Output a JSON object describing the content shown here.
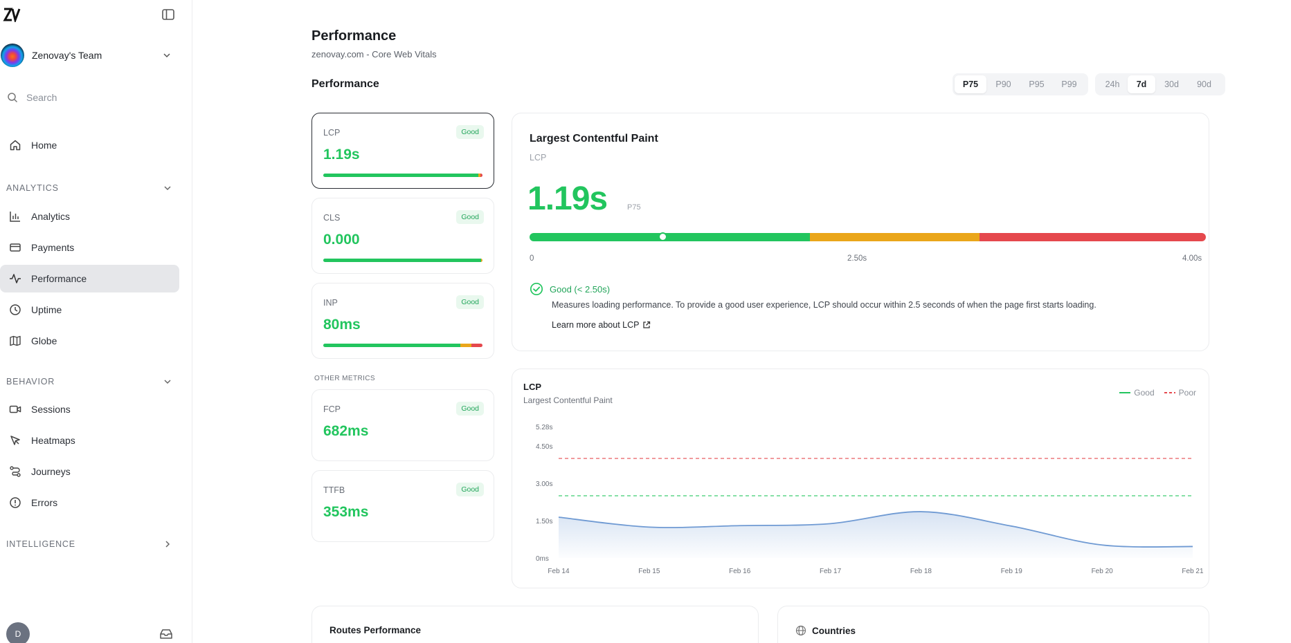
{
  "sidebar": {
    "team_name": "Zenovay's Team",
    "search_placeholder": "Search",
    "home": "Home",
    "analytics_section": "ANALYTICS",
    "analytics_items": [
      "Analytics",
      "Payments",
      "Performance",
      "Uptime",
      "Globe"
    ],
    "behavior_section": "BEHAVIOR",
    "behavior_items": [
      "Sessions",
      "Heatmaps",
      "Journeys",
      "Errors"
    ],
    "intelligence_section": "INTELLIGENCE",
    "user_initial": "D"
  },
  "header": {
    "title": "Performance",
    "subtitle": "zenovay.com - Core Web Vitals",
    "section_title": "Performance"
  },
  "percentile_options": [
    "P75",
    "P90",
    "P95",
    "P99"
  ],
  "percentile_selected": "P75",
  "range_options": [
    "24h",
    "7d",
    "30d",
    "90d"
  ],
  "range_selected": "7d",
  "metrics": [
    {
      "name": "LCP",
      "value": "1.19s",
      "badge": "Good",
      "bar": [
        0.975,
        0.01,
        0.015
      ]
    },
    {
      "name": "CLS",
      "value": "0.000",
      "badge": "Good",
      "bar": [
        0.99,
        0.01,
        0.0
      ]
    },
    {
      "name": "INP",
      "value": "80ms",
      "badge": "Good",
      "bar": [
        0.86,
        0.07,
        0.07
      ]
    }
  ],
  "other_metrics_label": "OTHER METRICS",
  "other_metrics": [
    {
      "name": "FCP",
      "value": "682ms",
      "badge": "Good"
    },
    {
      "name": "TTFB",
      "value": "353ms",
      "badge": "Good"
    }
  ],
  "detail": {
    "title": "Largest Contentful Paint",
    "abbr": "LCP",
    "value": "1.19s",
    "percentile": "P75",
    "scale_min": 0,
    "scale_max": 4.0,
    "scale_good_to": 1.66,
    "scale_ni_to": 2.66,
    "marker_value": 0.79,
    "tick_labels": [
      "0",
      "2.50s",
      "4.00s"
    ],
    "status": "Good (< 2.50s)",
    "description": "Measures loading performance. To provide a good user experience, LCP should occur within 2.5 seconds of when the page first starts loading.",
    "learn_more": "Learn more about LCP",
    "colors": {
      "good": "#22c55e",
      "needs_improvement": "#eaa61a",
      "poor": "#e5484d"
    }
  },
  "chart_panel": {
    "title": "LCP",
    "subtitle": "Largest Contentful Paint",
    "legend_good": "Good",
    "legend_poor": "Poor"
  },
  "chart_data": {
    "type": "area",
    "x": [
      "Feb 14",
      "Feb 15",
      "Feb 16",
      "Feb 17",
      "Feb 18",
      "Feb 19",
      "Feb 20",
      "Feb 21"
    ],
    "y_tick_labels": [
      "0ms",
      "1.50s",
      "3.00s",
      "4.50s",
      "5.28s"
    ],
    "y_ticks": [
      0,
      1.5,
      3.0,
      4.5,
      5.28
    ],
    "ylim": [
      0,
      5.28
    ],
    "series": [
      {
        "values": [
          1.64,
          1.24,
          1.3,
          1.38,
          1.86,
          1.28,
          0.52,
          0.46
        ],
        "color": "#6f9ad3"
      }
    ],
    "thresholds": [
      {
        "name": "Good",
        "value": 2.5,
        "color": "#22c55e"
      },
      {
        "name": "Poor",
        "value": 4.0,
        "color": "#e5484d"
      }
    ],
    "grid": false
  },
  "bottom": {
    "routes_title": "Routes Performance",
    "countries_title": "Countries"
  }
}
